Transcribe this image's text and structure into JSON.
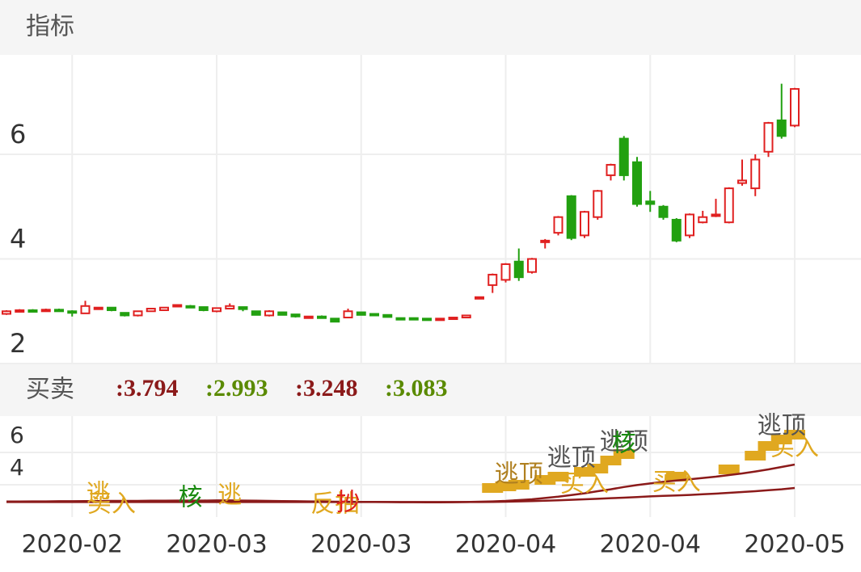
{
  "header": {
    "title": "指标"
  },
  "chart_data": [
    {
      "type": "candlestick",
      "categories": [
        null,
        null,
        null,
        null,
        null,
        "2020-02",
        null,
        null,
        null,
        null,
        null,
        null,
        null,
        null,
        null,
        null,
        "2020-03",
        null,
        null,
        null,
        null,
        null,
        null,
        null,
        null,
        null,
        null,
        "2020-03",
        null,
        null,
        null,
        null,
        null,
        null,
        null,
        null,
        null,
        null,
        "2020-04",
        null,
        null,
        null,
        null,
        null,
        null,
        null,
        null,
        null,
        null,
        "2020-04",
        null,
        null,
        null,
        null,
        null,
        null,
        null,
        null,
        null,
        null,
        "2020-05"
      ],
      "ohlc": [
        [
          2.95,
          3.0,
          3.02,
          2.93
        ],
        [
          3.0,
          3.02,
          3.04,
          2.98
        ],
        [
          3.02,
          3.0,
          3.04,
          2.98
        ],
        [
          3.0,
          3.03,
          3.05,
          2.99
        ],
        [
          3.03,
          3.01,
          3.05,
          3.0
        ],
        [
          3.0,
          2.98,
          3.02,
          2.9
        ],
        [
          2.96,
          3.1,
          3.2,
          2.95
        ],
        [
          3.05,
          3.07,
          3.08,
          3.03
        ],
        [
          3.07,
          3.02,
          3.08,
          3.0
        ],
        [
          2.97,
          2.92,
          2.98,
          2.9
        ],
        [
          2.92,
          3.0,
          3.01,
          2.9
        ],
        [
          3.0,
          3.05,
          3.06,
          2.99
        ],
        [
          3.02,
          3.07,
          3.08,
          3.01
        ],
        [
          3.1,
          3.12,
          3.13,
          3.08
        ],
        [
          3.1,
          3.09,
          3.12,
          3.07
        ],
        [
          3.08,
          3.02,
          3.09,
          3.0
        ],
        [
          3.0,
          3.06,
          3.07,
          2.98
        ],
        [
          3.05,
          3.1,
          3.15,
          3.04
        ],
        [
          3.08,
          3.04,
          3.09,
          3.0
        ],
        [
          3.0,
          2.93,
          3.01,
          2.92
        ],
        [
          2.92,
          3.0,
          3.02,
          2.9
        ],
        [
          2.98,
          2.93,
          2.99,
          2.92
        ],
        [
          2.94,
          2.9,
          2.95,
          2.88
        ],
        [
          2.87,
          2.9,
          2.91,
          2.86
        ],
        [
          2.9,
          2.88,
          2.92,
          2.86
        ],
        [
          2.86,
          2.8,
          2.87,
          2.79
        ],
        [
          2.88,
          3.0,
          3.05,
          2.87
        ],
        [
          2.98,
          2.93,
          2.99,
          2.92
        ],
        [
          2.95,
          2.92,
          2.96,
          2.91
        ],
        [
          2.93,
          2.89,
          2.94,
          2.88
        ],
        [
          2.87,
          2.86,
          2.88,
          2.85
        ],
        [
          2.87,
          2.85,
          2.88,
          2.84
        ],
        [
          2.86,
          2.84,
          2.87,
          2.83
        ],
        [
          2.84,
          2.86,
          2.87,
          2.83
        ],
        [
          2.85,
          2.88,
          2.89,
          2.84
        ],
        [
          2.88,
          2.92,
          2.93,
          2.87
        ],
        [
          3.25,
          3.27,
          3.28,
          3.24
        ],
        [
          3.5,
          3.7,
          3.72,
          3.35
        ],
        [
          3.6,
          3.9,
          3.92,
          3.55
        ],
        [
          3.95,
          3.65,
          4.2,
          3.58
        ],
        [
          3.75,
          4.0,
          4.02,
          3.72
        ],
        [
          4.32,
          4.35,
          4.38,
          4.2
        ],
        [
          4.5,
          4.8,
          4.82,
          4.45
        ],
        [
          5.2,
          4.4,
          5.22,
          4.36
        ],
        [
          4.45,
          4.9,
          4.92,
          4.4
        ],
        [
          4.8,
          5.3,
          5.32,
          4.75
        ],
        [
          5.6,
          5.8,
          5.82,
          5.5
        ],
        [
          6.3,
          5.6,
          6.35,
          5.5
        ],
        [
          5.85,
          5.05,
          5.95,
          5.0
        ],
        [
          5.1,
          5.05,
          5.3,
          4.9
        ],
        [
          5.0,
          4.8,
          5.03,
          4.75
        ],
        [
          4.75,
          4.35,
          4.78,
          4.32
        ],
        [
          4.45,
          4.85,
          4.87,
          4.4
        ],
        [
          4.7,
          4.8,
          4.92,
          4.68
        ],
        [
          4.82,
          4.85,
          5.15,
          4.8
        ],
        [
          4.7,
          5.35,
          5.37,
          4.68
        ],
        [
          5.45,
          5.5,
          5.9,
          5.4
        ],
        [
          5.35,
          5.9,
          6.0,
          5.2
        ],
        [
          6.05,
          6.6,
          6.62,
          5.95
        ],
        [
          6.65,
          6.35,
          7.35,
          6.3
        ],
        [
          6.55,
          7.25,
          7.27,
          6.52
        ]
      ],
      "up_color": "#e02020",
      "down_color": "#22a010",
      "ylim": [
        2,
        7.9
      ],
      "yticks": [
        2,
        4,
        6
      ],
      "grid": true
    },
    {
      "type": "signals",
      "title": "买卖",
      "readouts": [
        {
          "label": ":3.794",
          "color": "#8b1a1a"
        },
        {
          "label": ":2.993",
          "color": "#5a8a00"
        },
        {
          "label": ":3.248",
          "color": "#8b1a1a"
        },
        {
          "label": ":3.083",
          "color": "#5a8a00"
        }
      ],
      "series": [
        {
          "color": "#8b1a1a",
          "values": [
            2.93,
            2.93,
            2.93,
            2.93,
            2.93,
            2.93,
            2.93,
            2.93,
            2.93,
            2.93,
            2.93,
            2.93,
            2.93,
            2.93,
            2.93,
            2.93,
            2.93,
            2.93,
            2.93,
            2.93,
            2.93,
            2.93,
            2.93,
            2.93,
            2.93,
            2.93,
            2.93,
            2.93,
            2.93,
            2.93,
            2.93,
            2.93,
            2.93,
            2.93,
            2.93,
            2.93,
            2.93,
            2.94,
            2.95,
            2.97,
            2.99,
            3.01,
            3.04,
            3.07,
            3.1,
            3.13,
            3.17,
            3.2,
            3.24,
            3.28,
            3.31,
            3.34,
            3.37,
            3.41,
            3.45,
            3.5,
            3.55,
            3.6,
            3.66,
            3.72,
            3.8
          ]
        },
        {
          "color": "#8b1a1a",
          "values": [
            2.96,
            2.96,
            2.97,
            2.97,
            2.98,
            2.98,
            2.99,
            2.99,
            3.0,
            3.0,
            3.0,
            3.01,
            3.01,
            3.02,
            3.02,
            3.02,
            3.03,
            3.03,
            3.02,
            3.01,
            3.0,
            2.99,
            2.98,
            2.97,
            2.96,
            2.95,
            2.95,
            2.94,
            2.94,
            2.93,
            2.92,
            2.92,
            2.91,
            2.91,
            2.92,
            2.93,
            2.95,
            2.97,
            3.0,
            3.05,
            3.1,
            3.18,
            3.26,
            3.36,
            3.47,
            3.6,
            3.72,
            3.86,
            3.98,
            4.08,
            4.18,
            4.26,
            4.34,
            4.42,
            4.5,
            4.6,
            4.7,
            4.82,
            4.95,
            5.1,
            5.25
          ]
        }
      ],
      "blocks": {
        "color": "#e0a820",
        "items": [
          {
            "x": 37,
            "y": 3.8
          },
          {
            "x": 38,
            "y": 3.9
          },
          {
            "x": 39,
            "y": 4.0
          },
          {
            "x": 41,
            "y": 4.3
          },
          {
            "x": 42,
            "y": 4.5
          },
          {
            "x": 44,
            "y": 4.8
          },
          {
            "x": 45,
            "y": 5.0
          },
          {
            "x": 46,
            "y": 5.5
          },
          {
            "x": 47,
            "y": 5.9
          },
          {
            "x": 51,
            "y": 4.5
          },
          {
            "x": 55,
            "y": 4.95
          },
          {
            "x": 57,
            "y": 5.8
          },
          {
            "x": 58,
            "y": 6.4
          },
          {
            "x": 59,
            "y": 6.8
          },
          {
            "x": 60,
            "y": 7.1
          }
        ]
      },
      "annotations": [
        {
          "text": "逃",
          "x": 7,
          "y": 3.4,
          "color": "#e0a820"
        },
        {
          "text": "买入",
          "x": 8,
          "y": 2.75,
          "color": "#e0a820"
        },
        {
          "text": "核",
          "x": 14,
          "y": 3.15,
          "color": "#1a8a10"
        },
        {
          "text": "逃",
          "x": 17,
          "y": 3.3,
          "color": "#e0a820"
        },
        {
          "text": "反抽",
          "x": 25,
          "y": 2.75,
          "color": "#e0a820"
        },
        {
          "text": "抄",
          "x": 26,
          "y": 2.85,
          "color": "#e02020"
        },
        {
          "text": "逃顶",
          "x": 39,
          "y": 4.6,
          "color": "#b08020"
        },
        {
          "text": "逃顶",
          "x": 43,
          "y": 5.6,
          "color": "#555555"
        },
        {
          "text": "买入",
          "x": 44,
          "y": 4.0,
          "color": "#e0a820"
        },
        {
          "text": "逃顶",
          "x": 47,
          "y": 6.6,
          "color": "#555555"
        },
        {
          "text": "核",
          "x": 47,
          "y": 6.5,
          "color": "#1a8a10"
        },
        {
          "text": "买入",
          "x": 51,
          "y": 4.1,
          "color": "#e0a820"
        },
        {
          "text": "逃顶",
          "x": 59,
          "y": 7.6,
          "color": "#555555"
        },
        {
          "text": "买入",
          "x": 60,
          "y": 6.25,
          "color": "#e0a820"
        }
      ],
      "ylim": [
        2,
        8.25
      ],
      "yticks": [
        4,
        6
      ],
      "grid": true
    }
  ]
}
